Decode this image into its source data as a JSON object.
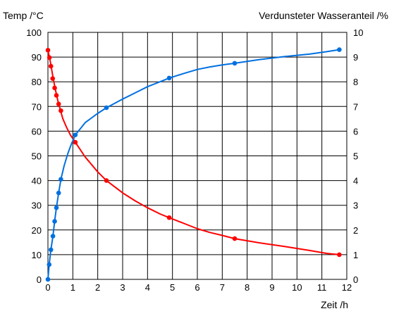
{
  "chart_data": {
    "type": "line",
    "xlabel": "Zeit /h",
    "ylabel_left": "Temp /°C",
    "ylabel_right": "Verdunsteter Wasseranteil /%",
    "xlim": [
      0,
      12
    ],
    "ylim_left": [
      0,
      100
    ],
    "ylim_right": [
      0,
      10
    ],
    "x_ticks": [
      "0",
      "1",
      "2",
      "3",
      "4",
      "5",
      "6",
      "7",
      "8",
      "9",
      "10",
      "11",
      "12"
    ],
    "y_left_ticks": [
      "0",
      "10",
      "20",
      "30",
      "40",
      "50",
      "60",
      "70",
      "80",
      "90",
      "100"
    ],
    "y_right_ticks": [
      "0",
      "1",
      "2",
      "3",
      "4",
      "5",
      "6",
      "7",
      "8",
      "9",
      "10"
    ],
    "grid": true,
    "series": [
      {
        "axis": "left",
        "color": "#ff0000",
        "points": [
          [
            0.0,
            92.8
          ],
          [
            0.06,
            89.8
          ],
          [
            0.12,
            86.3
          ],
          [
            0.19,
            81.3
          ],
          [
            0.27,
            77.5
          ],
          [
            0.34,
            74.5
          ],
          [
            0.43,
            71.0
          ],
          [
            0.52,
            68.3
          ],
          [
            1.1,
            55.5
          ],
          [
            2.35,
            40.0
          ],
          [
            4.87,
            25.0
          ],
          [
            7.5,
            16.5
          ],
          [
            11.7,
            10.0
          ]
        ],
        "curve": [
          [
            0.0,
            92.8
          ],
          [
            0.1,
            88.0
          ],
          [
            0.2,
            82.0
          ],
          [
            0.3,
            76.8
          ],
          [
            0.4,
            72.3
          ],
          [
            0.5,
            68.5
          ],
          [
            0.6,
            65.0
          ],
          [
            0.75,
            61.5
          ],
          [
            0.9,
            58.5
          ],
          [
            1.1,
            55.5
          ],
          [
            1.5,
            49.5
          ],
          [
            2.0,
            43.5
          ],
          [
            2.35,
            40.0
          ],
          [
            3.0,
            35.0
          ],
          [
            3.5,
            31.8
          ],
          [
            4.0,
            29.0
          ],
          [
            4.5,
            26.5
          ],
          [
            4.87,
            25.0
          ],
          [
            5.5,
            22.5
          ],
          [
            6.0,
            20.5
          ],
          [
            6.5,
            19.0
          ],
          [
            7.0,
            17.8
          ],
          [
            7.5,
            16.5
          ],
          [
            8.5,
            14.8
          ],
          [
            9.5,
            13.3
          ],
          [
            10.5,
            11.7
          ],
          [
            11.2,
            10.5
          ],
          [
            11.7,
            10.0
          ]
        ]
      },
      {
        "axis": "right",
        "color": "#0070e0",
        "points": [
          [
            0.0,
            0.0
          ],
          [
            0.05,
            0.6
          ],
          [
            0.12,
            1.2
          ],
          [
            0.2,
            1.75
          ],
          [
            0.27,
            2.35
          ],
          [
            0.34,
            2.9
          ],
          [
            0.43,
            3.5
          ],
          [
            0.52,
            4.05
          ],
          [
            1.1,
            5.85
          ],
          [
            2.35,
            6.95
          ],
          [
            4.87,
            8.15
          ],
          [
            7.5,
            8.75
          ],
          [
            11.7,
            9.3
          ]
        ],
        "curve": [
          [
            0.0,
            0.0
          ],
          [
            0.05,
            0.6
          ],
          [
            0.12,
            1.2
          ],
          [
            0.2,
            1.75
          ],
          [
            0.27,
            2.35
          ],
          [
            0.34,
            2.9
          ],
          [
            0.43,
            3.5
          ],
          [
            0.52,
            4.05
          ],
          [
            0.65,
            4.6
          ],
          [
            0.8,
            5.1
          ],
          [
            0.95,
            5.5
          ],
          [
            1.1,
            5.85
          ],
          [
            1.5,
            6.35
          ],
          [
            2.0,
            6.72
          ],
          [
            2.35,
            6.95
          ],
          [
            3.0,
            7.3
          ],
          [
            3.5,
            7.55
          ],
          [
            4.0,
            7.8
          ],
          [
            4.5,
            8.0
          ],
          [
            4.87,
            8.15
          ],
          [
            5.5,
            8.35
          ],
          [
            6.0,
            8.5
          ],
          [
            6.5,
            8.6
          ],
          [
            7.0,
            8.68
          ],
          [
            7.5,
            8.75
          ],
          [
            8.5,
            8.9
          ],
          [
            9.5,
            9.02
          ],
          [
            10.5,
            9.12
          ],
          [
            11.2,
            9.22
          ],
          [
            11.7,
            9.3
          ]
        ]
      }
    ]
  }
}
